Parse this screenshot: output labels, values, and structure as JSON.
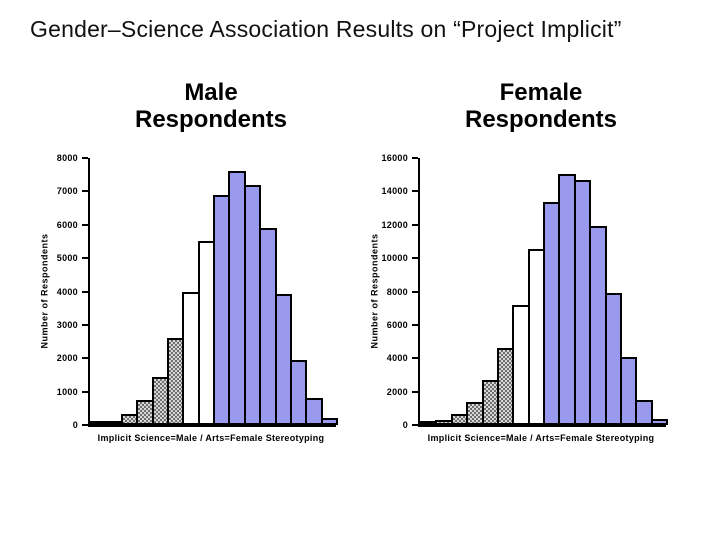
{
  "title": "Gender–Science Association Results on “Project Implicit”",
  "colors": {
    "bar_blue": "#9999ee",
    "bar_white": "#ffffff",
    "bar_gray_light": "#d8d8d8",
    "bar_gray_dark": "#6e6e6e",
    "stroke": "#000000",
    "text": "#000000"
  },
  "chart_data": [
    {
      "type": "bar",
      "title": "Male\nRespondents",
      "ylabel": "Number of Respondents",
      "xlabel": "Implicit Science=Male / Arts=Female Stereotyping",
      "ylim": [
        0,
        8000
      ],
      "yticks": [
        0,
        1000,
        2000,
        3000,
        4000,
        5000,
        6000,
        7000,
        8000
      ],
      "grid": false,
      "legend": false,
      "values": [
        60,
        110,
        340,
        750,
        1450,
        2600,
        4000,
        5500,
        6900,
        7600,
        7200,
        5900,
        3930,
        1950,
        820,
        220
      ],
      "fills": [
        "gray",
        "gray",
        "gray",
        "gray",
        "gray",
        "gray",
        "white",
        "white",
        "blue",
        "blue",
        "blue",
        "blue",
        "blue",
        "blue",
        "blue",
        "blue"
      ]
    },
    {
      "type": "bar",
      "title": "Female\nRespondents",
      "ylabel": "Number of Respondents",
      "xlabel": "Implicit Science=Male / Arts=Female Stereotyping",
      "ylim": [
        0,
        16000
      ],
      "yticks": [
        0,
        2000,
        4000,
        6000,
        8000,
        10000,
        12000,
        14000,
        16000
      ],
      "grid": false,
      "legend": false,
      "values": [
        100,
        300,
        660,
        1400,
        2700,
        4600,
        7200,
        10550,
        13380,
        15050,
        14700,
        11950,
        7900,
        4050,
        1500,
        380
      ],
      "fills": [
        "gray",
        "gray",
        "gray",
        "gray",
        "gray",
        "gray",
        "white",
        "white",
        "blue",
        "blue",
        "blue",
        "blue",
        "blue",
        "blue",
        "blue",
        "blue"
      ]
    }
  ]
}
